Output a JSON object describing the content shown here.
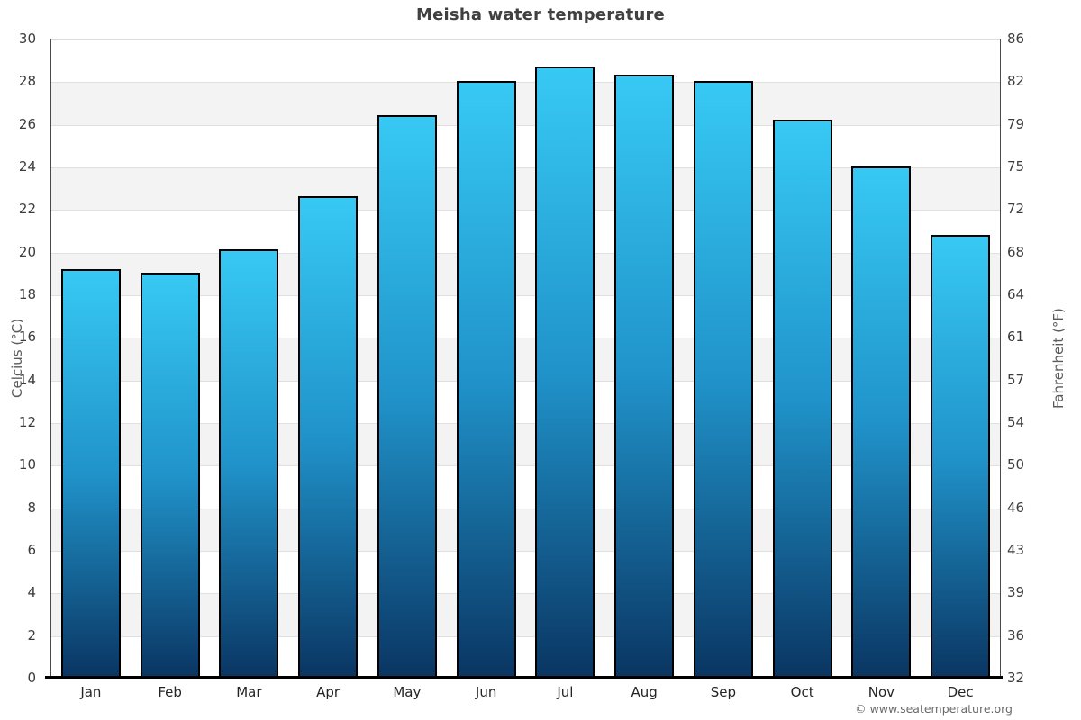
{
  "page": {
    "title": "Meisha water temperature",
    "watermark": "© www.seatemperature.org"
  },
  "axes": {
    "left_title": "Celcius (°C)",
    "right_title": "Fahrenheit (°F)"
  },
  "chart_data": {
    "type": "bar",
    "title": "Meisha water temperature",
    "categories": [
      "Jan",
      "Feb",
      "Mar",
      "Apr",
      "May",
      "Jun",
      "Jul",
      "Aug",
      "Sep",
      "Oct",
      "Nov",
      "Dec"
    ],
    "values": [
      19.2,
      19.0,
      20.1,
      22.6,
      26.4,
      28.0,
      28.7,
      28.3,
      28.0,
      26.2,
      24.0,
      20.8
    ],
    "series_name": "Water temperature",
    "unit": "°C",
    "xlabel": "",
    "ylabel_left": "Celcius (°C)",
    "ylabel_right": "Fahrenheit (°F)",
    "ylim": [
      0,
      30
    ],
    "yticks_celsius": [
      0,
      2,
      4,
      6,
      8,
      10,
      12,
      14,
      16,
      18,
      20,
      22,
      24,
      26,
      28,
      30
    ],
    "yticks_fahrenheit": [
      32,
      36,
      39,
      43,
      46,
      50,
      54,
      57,
      61,
      64,
      68,
      72,
      75,
      79,
      82,
      86
    ],
    "grid": "horizontal alternating bands every 2°C",
    "legend_position": "none",
    "colors": {
      "bar_top": "#37c9f3",
      "bar_mid": "#2093ca",
      "bar_bottom": "#0a3663",
      "bar_border": "#000000",
      "band_gray": "#f3f3f3",
      "gridline": "#e0e0e0",
      "axis_line": "#4a4a4a",
      "bottom_axis": "#000000",
      "title_text": "#404040",
      "tick_text": "#3c3c3c",
      "axis_title_text": "#5a5a5a",
      "watermark_text": "#6a6a6a"
    }
  }
}
